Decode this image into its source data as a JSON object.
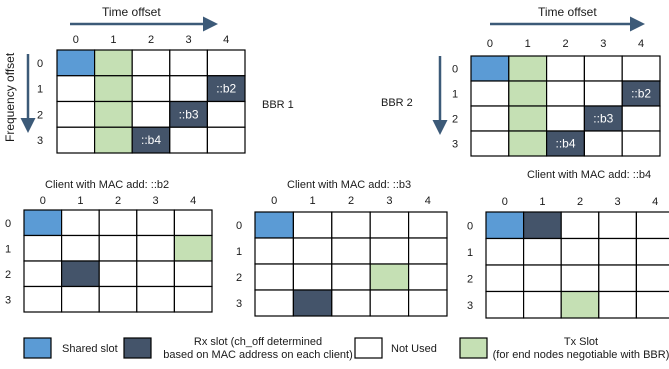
{
  "colors": {
    "shared": "#5b9bd5",
    "rx": "#44546a",
    "tx": "#c5e0b4",
    "unused": "#ffffff",
    "grid_line": "#000000",
    "arrow": "#3c5a78"
  },
  "axis_labels": {
    "time_offset": "Time offset",
    "frequency_offset": "Frequency offset"
  },
  "grids": [
    {
      "id": "bbr1",
      "title": "",
      "side_label": "BBR 1",
      "col_labels": [
        "0",
        "1",
        "2",
        "3",
        "4"
      ],
      "row_labels": [
        "0",
        "1",
        "2",
        "3"
      ],
      "cells": [
        [
          "shared",
          "tx",
          "unused",
          "unused",
          "unused"
        ],
        [
          "unused",
          "tx",
          "unused",
          "unused",
          "rx"
        ],
        [
          "unused",
          "tx",
          "unused",
          "rx",
          "unused"
        ],
        [
          "unused",
          "tx",
          "rx",
          "unused",
          "unused"
        ]
      ],
      "cell_text": [
        [
          "",
          "",
          "",
          "",
          ""
        ],
        [
          "",
          "",
          "",
          "",
          "::b2"
        ],
        [
          "",
          "",
          "",
          "::b3",
          ""
        ],
        [
          "",
          "",
          "::b4",
          "",
          ""
        ]
      ]
    },
    {
      "id": "bbr2",
      "title": "",
      "side_label": "BBR 2",
      "col_labels": [
        "0",
        "1",
        "2",
        "3",
        "4"
      ],
      "row_labels": [
        "0",
        "1",
        "2",
        "3"
      ],
      "cells": [
        [
          "shared",
          "tx",
          "unused",
          "unused",
          "unused"
        ],
        [
          "unused",
          "tx",
          "unused",
          "unused",
          "rx"
        ],
        [
          "unused",
          "tx",
          "unused",
          "rx",
          "unused"
        ],
        [
          "unused",
          "tx",
          "rx",
          "unused",
          "unused"
        ]
      ],
      "cell_text": [
        [
          "",
          "",
          "",
          "",
          ""
        ],
        [
          "",
          "",
          "",
          "",
          "::b2"
        ],
        [
          "",
          "",
          "",
          "::b3",
          ""
        ],
        [
          "",
          "",
          "::b4",
          "",
          ""
        ]
      ]
    },
    {
      "id": "client-b2",
      "title": "Client with MAC add:  ::b2",
      "side_label": "",
      "col_labels": [
        "0",
        "1",
        "2",
        "3",
        "4"
      ],
      "row_labels": [
        "0",
        "1",
        "2",
        "3"
      ],
      "cells": [
        [
          "shared",
          "unused",
          "unused",
          "unused",
          "unused"
        ],
        [
          "unused",
          "unused",
          "unused",
          "unused",
          "tx"
        ],
        [
          "unused",
          "rx",
          "unused",
          "unused",
          "unused"
        ],
        [
          "unused",
          "unused",
          "unused",
          "unused",
          "unused"
        ]
      ],
      "cell_text": []
    },
    {
      "id": "client-b3",
      "title": "Client with MAC add:  ::b3",
      "side_label": "",
      "col_labels": [
        "0",
        "1",
        "2",
        "3",
        "4"
      ],
      "row_labels": [
        "0",
        "1",
        "2",
        "3"
      ],
      "cells": [
        [
          "shared",
          "unused",
          "unused",
          "unused",
          "unused"
        ],
        [
          "unused",
          "unused",
          "unused",
          "unused",
          "unused"
        ],
        [
          "unused",
          "unused",
          "unused",
          "tx",
          "unused"
        ],
        [
          "unused",
          "rx",
          "unused",
          "unused",
          "unused"
        ]
      ],
      "cell_text": []
    },
    {
      "id": "client-b4",
      "title": "Client with MAC add:  ::b4",
      "side_label": "",
      "col_labels": [
        "0",
        "1",
        "2",
        "3",
        "4"
      ],
      "row_labels": [
        "0",
        "1",
        "2",
        "3"
      ],
      "cells": [
        [
          "shared",
          "rx",
          "unused",
          "unused",
          "unused"
        ],
        [
          "unused",
          "unused",
          "unused",
          "unused",
          "unused"
        ],
        [
          "unused",
          "unused",
          "unused",
          "unused",
          "unused"
        ],
        [
          "unused",
          "unused",
          "tx",
          "unused",
          "unused"
        ]
      ],
      "cell_text": []
    }
  ],
  "legend": [
    {
      "kind": "shared",
      "lines": [
        "Shared slot"
      ]
    },
    {
      "kind": "rx",
      "lines": [
        "Rx slot (ch_off determined",
        "based on MAC address on each client)"
      ]
    },
    {
      "kind": "unused",
      "lines": [
        "Not Used"
      ]
    },
    {
      "kind": "tx",
      "lines": [
        "Tx Slot",
        "(for end nodes negotiable with BBR)"
      ]
    }
  ]
}
